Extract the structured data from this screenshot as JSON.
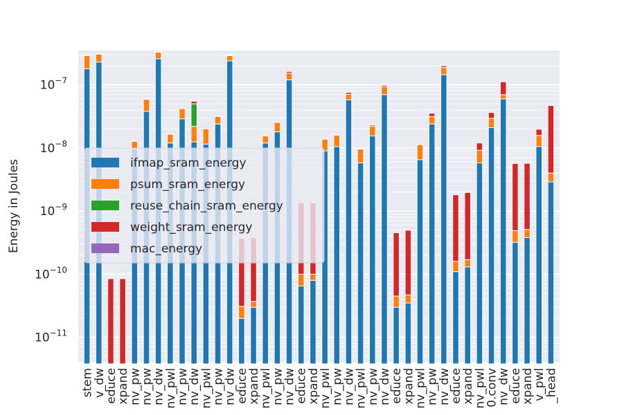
{
  "chart_data": {
    "type": "bar",
    "stacked": true,
    "yscale": "log",
    "ylim": [
      4e-12,
      3.5e-07
    ],
    "ylabel": "Energy in Joules",
    "xlabel": "",
    "title": "",
    "grid": true,
    "legend_position": "left-center",
    "yticks": [
      {
        "value": 1e-11,
        "label": "10^{-11}"
      },
      {
        "value": 1e-10,
        "label": "10^{-10}"
      },
      {
        "value": 1e-09,
        "label": "10^{-9}"
      },
      {
        "value": 1e-08,
        "label": "10^{-8}"
      },
      {
        "value": 1e-07,
        "label": "10^{-7}"
      }
    ],
    "categories": [
      "stem",
      "v_dw",
      "educe",
      "xpand",
      "nv_pw",
      "nv_pw",
      "nv_dw",
      "nv_pwl",
      "nv_pw",
      "nv_dw",
      "nv_pwl",
      "nv_pw",
      "nv_dw",
      "educe",
      "xpand",
      "nv_pwl",
      "nv_pw",
      "nv_dw",
      "educe",
      "xpand",
      "nv_pwl",
      "nv_pw",
      "nv_dw",
      "nv_pwl",
      "nv_pw",
      "nv_dw",
      "educe",
      "xpand",
      "nv_pwl",
      "nv_pw",
      "nv_dw",
      "educe",
      "xpand",
      "nv_pwl",
      "0.conv",
      "nv_dw",
      "educe",
      "xpand",
      "v_pwl",
      "_head"
    ],
    "series": [
      {
        "name": "ifmap_sram_energy",
        "color": "#1f77b4",
        "values": [
          1.8e-07,
          2.3e-07,
          0,
          0,
          9.5e-09,
          3.8e-08,
          2.6e-07,
          1.2e-08,
          2.9e-08,
          1.25e-08,
          1.15e-08,
          2.4e-08,
          2.4e-07,
          2e-11,
          3e-11,
          1.2e-08,
          1.8e-08,
          1.2e-07,
          6.5e-11,
          8e-11,
          9e-09,
          1.05e-08,
          5.8e-08,
          5.8e-09,
          1.55e-08,
          7e-08,
          3e-11,
          3.5e-11,
          6.5e-09,
          2.4e-08,
          1.45e-07,
          1.1e-10,
          1.3e-10,
          5.8e-09,
          2.1e-08,
          6e-08,
          3.2e-10,
          3.8e-10,
          1.05e-08,
          2.9e-09
        ]
      },
      {
        "name": "psum_sram_energy",
        "color": "#ff7f0e",
        "values": [
          1.1e-07,
          7.5e-08,
          0,
          0,
          3.2e-09,
          2.1e-08,
          7e-08,
          4.5e-09,
          1.3e-08,
          9.5e-09,
          8.5e-09,
          7.5e-09,
          5e-08,
          1.1e-11,
          7e-12,
          3.5e-09,
          7.5e-09,
          3.3e-08,
          3.5e-11,
          2e-11,
          4.8e-09,
          5.5e-09,
          1.3e-08,
          3.8e-09,
          6.5e-09,
          2.3e-08,
          1.5e-11,
          1.2e-11,
          4.8e-09,
          7.5e-09,
          4.3e-08,
          5e-11,
          4e-11,
          3.4e-09,
          8.5e-09,
          9.8e-09,
          1.7e-10,
          1.3e-10,
          5.3e-09,
          1.1e-09
        ]
      },
      {
        "name": "reuse_chain_sram_energy",
        "color": "#2ca02c",
        "values": [
          0,
          0,
          0,
          0,
          0,
          0,
          0,
          0,
          0,
          2.8e-08,
          0,
          0,
          0,
          0,
          0,
          0,
          0,
          0,
          0,
          0,
          0,
          0,
          0,
          0,
          0,
          0,
          0,
          0,
          0,
          0,
          0,
          0,
          0,
          0,
          0,
          0,
          0,
          0,
          0,
          0
        ]
      },
      {
        "name": "weight_sram_energy",
        "color": "#d62728",
        "values": [
          0,
          0,
          8.5e-11,
          8.5e-11,
          1e-10,
          2e-10,
          2e-09,
          1e-10,
          2e-10,
          5e-09,
          1e-10,
          3e-10,
          3e-09,
          3.4e-10,
          3.4e-10,
          1e-10,
          3e-10,
          1e-08,
          1.25e-09,
          1.25e-09,
          1e-10,
          3e-10,
          5e-09,
          1e-10,
          1e-09,
          5e-09,
          4.1e-10,
          4.5e-10,
          1e-10,
          4e-09,
          1.2e-08,
          1.65e-09,
          1.8e-09,
          2.8e-09,
          7e-09,
          4.2e-08,
          5.2e-09,
          5.2e-09,
          4e-09,
          4.3e-08
        ]
      },
      {
        "name": "mac_energy",
        "color": "#9467bd",
        "values": [
          0,
          0,
          0,
          0,
          0,
          0,
          0,
          0,
          0,
          0,
          0,
          0,
          0,
          0,
          0,
          0,
          0,
          0,
          0,
          0,
          0,
          0,
          0,
          0,
          0,
          0,
          0,
          0,
          0,
          0,
          0,
          0,
          0,
          0,
          0,
          0,
          0,
          0,
          0,
          0
        ]
      }
    ]
  }
}
